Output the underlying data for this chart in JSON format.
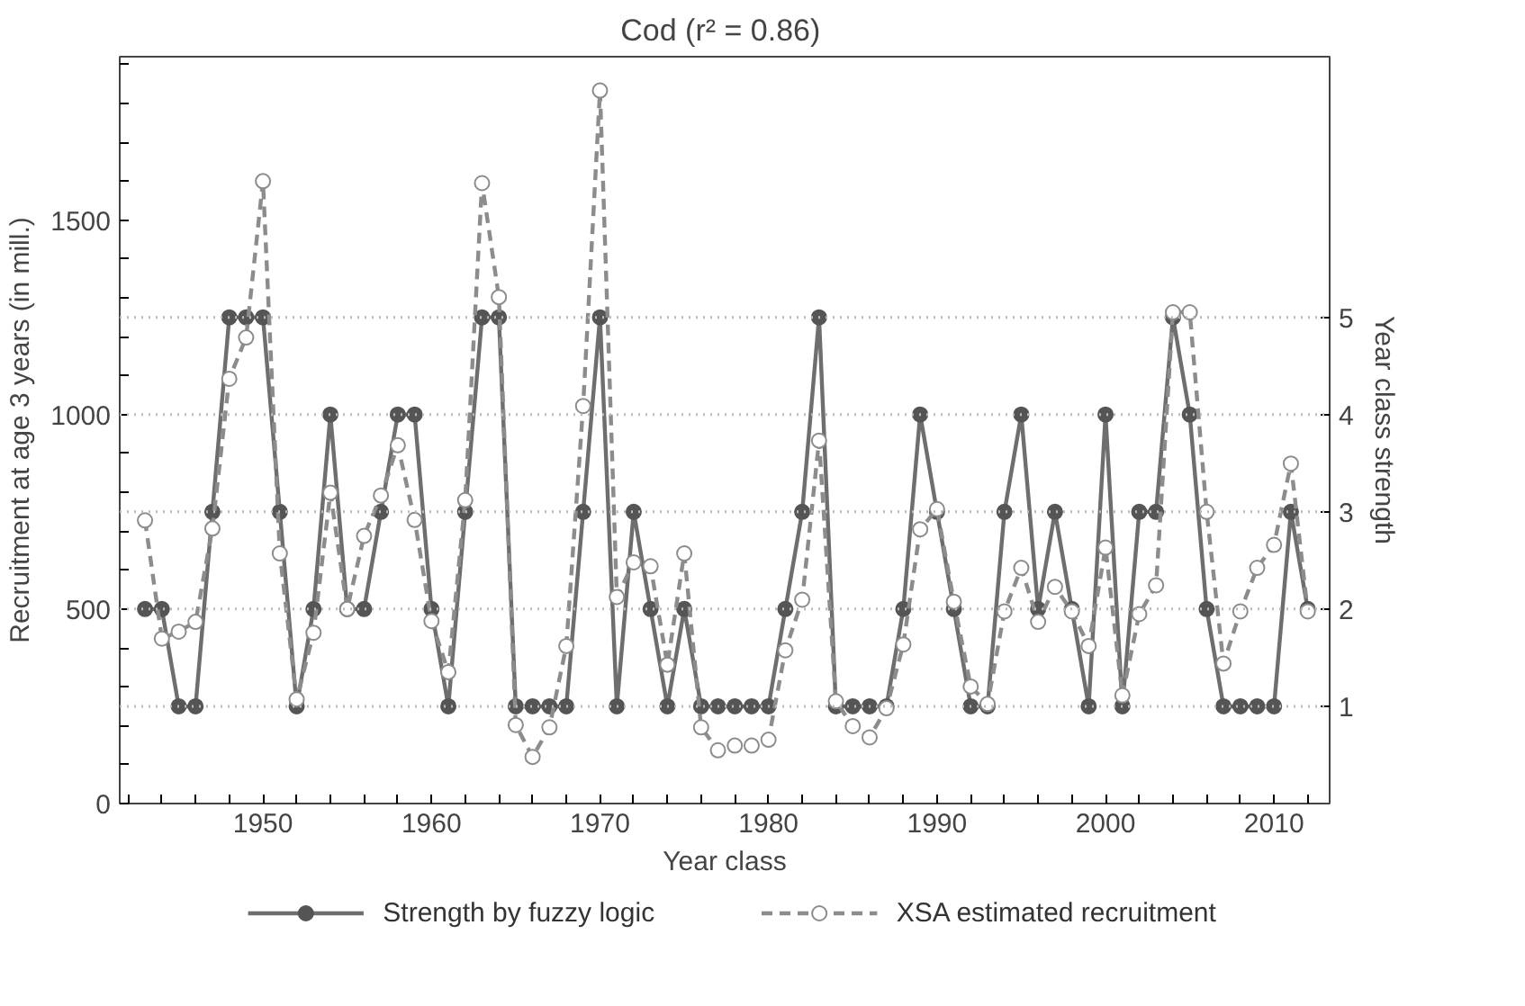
{
  "chart_data": {
    "type": "line",
    "title": "Cod  (r² = 0.86)",
    "xlabel": "Year class",
    "ylabel": "Recruitment at age 3 years (in mill.)",
    "y2label": "Year class strength",
    "x": [
      1943,
      1944,
      1945,
      1946,
      1947,
      1948,
      1949,
      1950,
      1951,
      1952,
      1953,
      1954,
      1955,
      1956,
      1957,
      1958,
      1959,
      1960,
      1961,
      1962,
      1963,
      1964,
      1965,
      1966,
      1967,
      1968,
      1969,
      1970,
      1971,
      1972,
      1973,
      1974,
      1975,
      1976,
      1977,
      1978,
      1979,
      1980,
      1981,
      1982,
      1983,
      1984,
      1985,
      1986,
      1987,
      1988,
      1989,
      1990,
      1991,
      1992,
      1993,
      1994,
      1995,
      1996,
      1997,
      1998,
      1999,
      2000,
      2001,
      2002,
      2003,
      2004,
      2005,
      2006,
      2007,
      2008,
      2009,
      2010,
      2011,
      2012
    ],
    "series": [
      {
        "name": "Strength by fuzzy logic",
        "color": "#6e6e6e",
        "axis": "y2",
        "line_style": "solid",
        "values": [
          2,
          2,
          1,
          1,
          3,
          5,
          5,
          5,
          3,
          1,
          2,
          4,
          2,
          2,
          3,
          4,
          4,
          2,
          1,
          3,
          5,
          5,
          1,
          1,
          1,
          1,
          3,
          5,
          1,
          3,
          2,
          1,
          2,
          1,
          1,
          1,
          1,
          1,
          2,
          3,
          5,
          1,
          1,
          1,
          1,
          2,
          4,
          3,
          2,
          1,
          1,
          3,
          4,
          2,
          3,
          2,
          1,
          4,
          1,
          3,
          3,
          5,
          4,
          2,
          1,
          1,
          1,
          1,
          3,
          2
        ]
      },
      {
        "name": "XSA estimated recruitment",
        "color": "#8c8c8c",
        "line_style": "dashed",
        "values": [
          728,
          424,
          442,
          467,
          707,
          1092,
          1198,
          1600,
          643,
          268,
          439,
          799,
          500,
          688,
          792,
          921,
          729,
          469,
          338,
          780,
          1595,
          1302,
          202,
          120,
          196,
          405,
          1022,
          1833,
          531,
          620,
          610,
          357,
          643,
          196,
          137,
          149,
          149,
          164,
          394,
          524,
          933,
          263,
          199,
          170,
          245,
          409,
          705,
          757,
          519,
          301,
          256,
          494,
          606,
          467,
          557,
          494,
          405,
          658,
          278,
          487,
          561,
          1263,
          1263,
          750,
          360,
          494,
          606,
          665,
          874,
          494
        ]
      }
    ],
    "xlim": [
      1941.5,
      2013.3
    ],
    "xticks": [
      {
        "value": 1942,
        "label": null
      },
      {
        "value": 1944,
        "label": null
      },
      {
        "value": 1946,
        "label": null
      },
      {
        "value": 1948,
        "label": null
      },
      1950,
      {
        "value": 1952,
        "label": null
      },
      {
        "value": 1954,
        "label": null
      },
      {
        "value": 1956,
        "label": null
      },
      {
        "value": 1958,
        "label": null
      },
      1960,
      {
        "value": 1962,
        "label": null
      },
      {
        "value": 1964,
        "label": null
      },
      {
        "value": 1966,
        "label": null
      },
      {
        "value": 1968,
        "label": null
      },
      1970,
      {
        "value": 1972,
        "label": null
      },
      {
        "value": 1974,
        "label": null
      },
      {
        "value": 1976,
        "label": null
      },
      {
        "value": 1978,
        "label": null
      },
      1980,
      {
        "value": 1982,
        "label": null
      },
      {
        "value": 1984,
        "label": null
      },
      {
        "value": 1986,
        "label": null
      },
      {
        "value": 1988,
        "label": null
      },
      1990,
      {
        "value": 1992,
        "label": null
      },
      {
        "value": 1994,
        "label": null
      },
      {
        "value": 1996,
        "label": null
      },
      {
        "value": 1998,
        "label": null
      },
      2000,
      {
        "value": 2002,
        "label": null
      },
      {
        "value": 2004,
        "label": null
      },
      {
        "value": 2006,
        "label": null
      },
      {
        "value": 2008,
        "label": null
      },
      2010,
      {
        "value": 2012,
        "label": null
      }
    ],
    "ylim": [
      0,
      1920
    ],
    "yticks": [
      0,
      {
        "value": 100,
        "label": null
      },
      {
        "value": 200,
        "label": null
      },
      {
        "value": 300,
        "label": null
      },
      {
        "value": 400,
        "label": null
      },
      500,
      {
        "value": 600,
        "label": null
      },
      {
        "value": 700,
        "label": null
      },
      {
        "value": 800,
        "label": null
      },
      {
        "value": 900,
        "label": null
      },
      1000,
      {
        "value": 1100,
        "label": null
      },
      {
        "value": 1200,
        "label": null
      },
      {
        "value": 1300,
        "label": null
      },
      {
        "value": 1400,
        "label": null
      },
      1500,
      {
        "value": 1600,
        "label": null
      },
      {
        "value": 1700,
        "label": null
      },
      {
        "value": 1800,
        "label": null
      },
      {
        "value": 1900,
        "label": null
      }
    ],
    "y2lim": [
      0,
      7.68
    ],
    "y2ticks": [
      1,
      2,
      3,
      4,
      5
    ],
    "grid": "y2",
    "legend": "bottom",
    "marker": "circle"
  }
}
